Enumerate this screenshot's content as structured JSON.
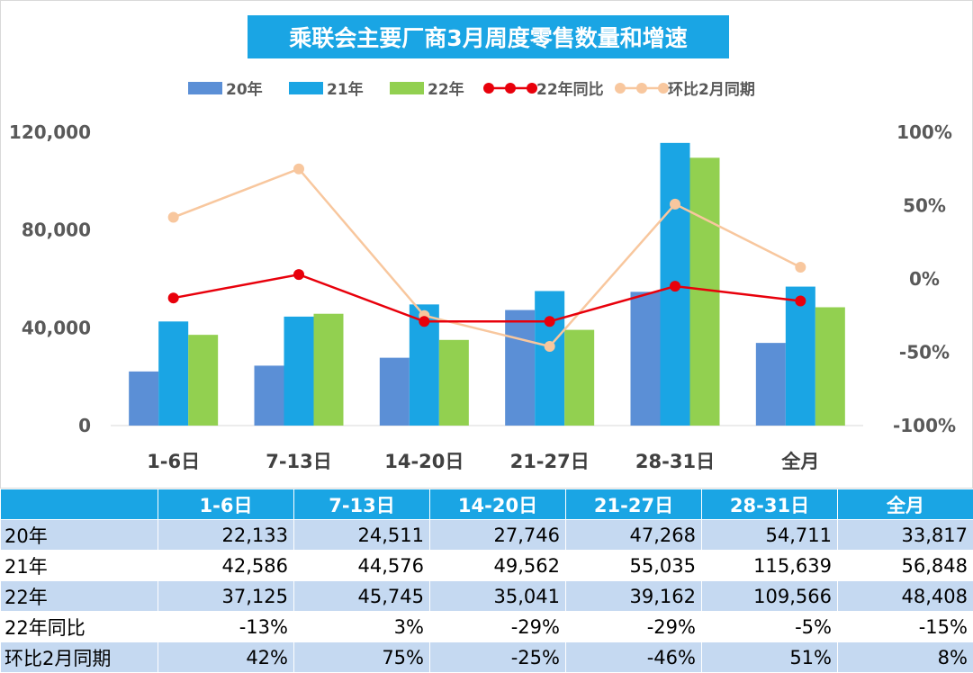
{
  "chart_data": {
    "type": "bar",
    "title": "乘联会主要厂商3月周度零售数量和增速",
    "categories": [
      "1-6日",
      "7-13日",
      "14-20日",
      "21-27日",
      "28-31日",
      "全月"
    ],
    "series": [
      {
        "name": "20年",
        "kind": "bar",
        "axis": "left",
        "color": "#5b8fd6",
        "values": [
          22133,
          24511,
          27746,
          47268,
          54711,
          33817
        ]
      },
      {
        "name": "21年",
        "kind": "bar",
        "axis": "left",
        "color": "#1aa5e4",
        "values": [
          42586,
          44576,
          49562,
          55035,
          115639,
          56848
        ]
      },
      {
        "name": "22年",
        "kind": "bar",
        "axis": "left",
        "color": "#92d050",
        "values": [
          37125,
          45745,
          35041,
          39162,
          109566,
          48408
        ]
      },
      {
        "name": "22年同比",
        "kind": "line",
        "axis": "right",
        "color": "#e8000b",
        "values": [
          -13,
          3,
          -29,
          -29,
          -5,
          -15
        ]
      },
      {
        "name": "环比2月同期",
        "kind": "line",
        "axis": "right",
        "color": "#f8c79e",
        "values": [
          42,
          75,
          -25,
          -46,
          51,
          8
        ]
      }
    ],
    "y_left": {
      "min": 0,
      "max": 120000,
      "ticks": [
        0,
        40000,
        80000,
        120000
      ],
      "tick_labels": [
        "0",
        "40,000",
        "80,000",
        "120,000"
      ]
    },
    "y_right": {
      "min": -100,
      "max": 100,
      "unit": "%",
      "ticks": [
        -100,
        -50,
        0,
        50,
        100
      ],
      "tick_labels": [
        "-100%",
        "-50%",
        "0%",
        "50%",
        "100%"
      ]
    },
    "legend_position": "top",
    "grid": false
  },
  "table": {
    "header": [
      "",
      "1-6日",
      "7-13日",
      "14-20日",
      "21-27日",
      "28-31日",
      "全月"
    ],
    "rows": [
      {
        "label": "20年",
        "cells": [
          "22,133",
          "24,511",
          "27,746",
          "47,268",
          "54,711",
          "33,817"
        ]
      },
      {
        "label": "21年",
        "cells": [
          "42,586",
          "44,576",
          "49,562",
          "55,035",
          "115,639",
          "56,848"
        ]
      },
      {
        "label": "22年",
        "cells": [
          "37,125",
          "45,745",
          "35,041",
          "39,162",
          "109,566",
          "48,408"
        ]
      },
      {
        "label": "22年同比",
        "cells": [
          "-13%",
          "3%",
          "-29%",
          "-29%",
          "-5%",
          "-15%"
        ]
      },
      {
        "label": "环比2月同期",
        "cells": [
          "42%",
          "75%",
          "-25%",
          "-46%",
          "51%",
          "8%"
        ]
      }
    ]
  }
}
